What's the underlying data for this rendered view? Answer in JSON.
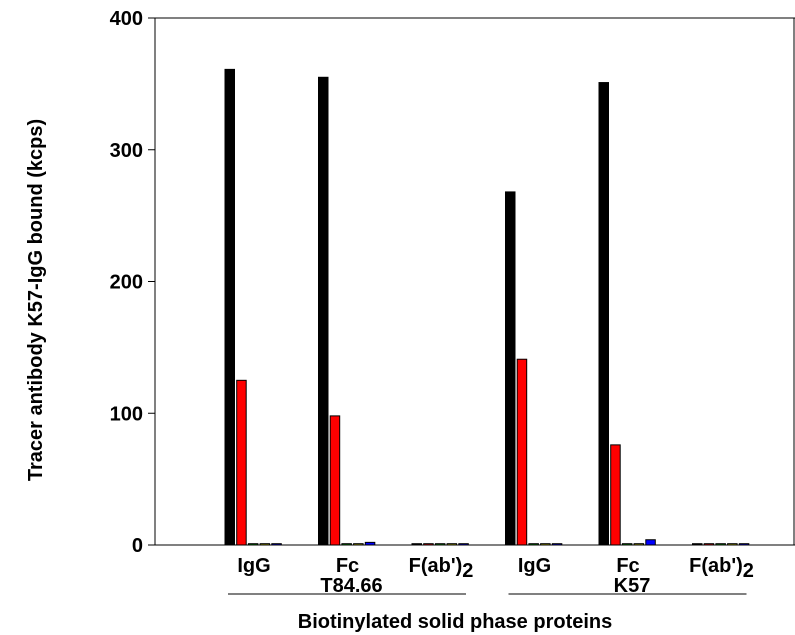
{
  "chart_data": {
    "type": "bar",
    "xlabel": "Biotinylated solid phase proteins",
    "ylabel": "Tracer antibody K57-IgG bound (kcps)",
    "ylim": [
      0,
      400
    ],
    "yticks": [
      "0",
      "100",
      "200",
      "300",
      "400"
    ],
    "categories": [
      "IgG",
      "Fc",
      "F(ab')2",
      "IgG",
      "Fc",
      "F(ab')2"
    ],
    "groups": [
      {
        "label": "T84.66",
        "categories": [
          0,
          1,
          2
        ]
      },
      {
        "label": "K57",
        "categories": [
          3,
          4,
          5
        ]
      }
    ],
    "series": [
      {
        "color": "#000000",
        "values": [
          361,
          355,
          1,
          268,
          351,
          1
        ]
      },
      {
        "color": "#ff0000",
        "values": [
          125,
          98,
          1,
          141,
          76,
          1
        ]
      },
      {
        "color": "#00a000",
        "values": [
          1,
          1,
          1,
          1,
          1,
          1
        ]
      },
      {
        "color": "#c8c800",
        "values": [
          1,
          1,
          1,
          1,
          1,
          1
        ]
      },
      {
        "color": "#0000ff",
        "values": [
          1,
          2,
          1,
          1,
          4,
          1
        ]
      }
    ],
    "grid": false,
    "legend": "none"
  }
}
